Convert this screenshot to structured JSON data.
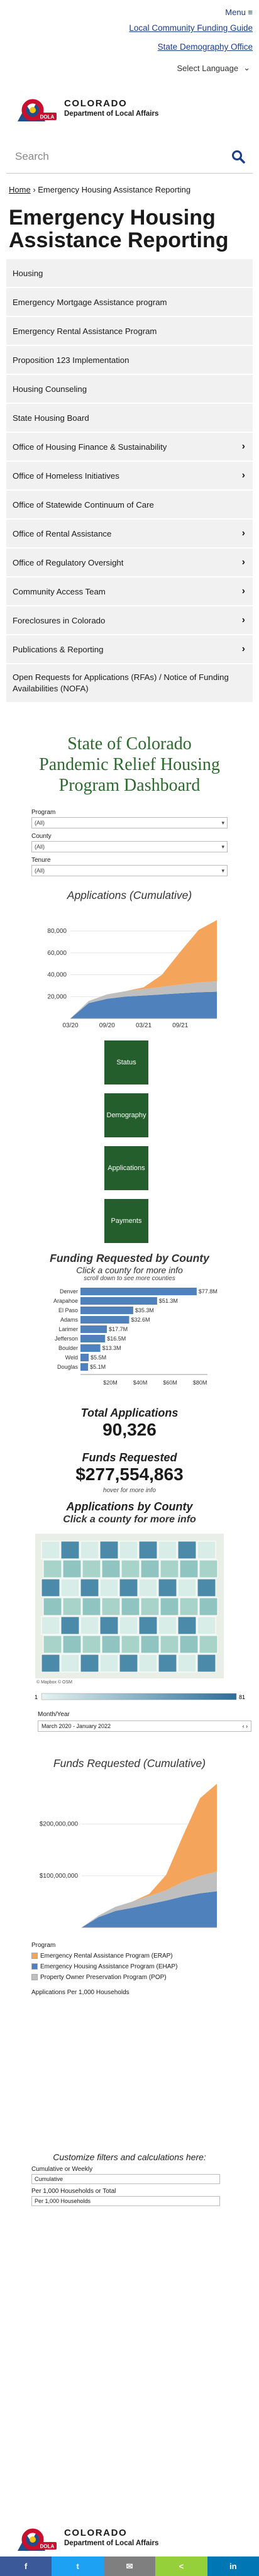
{
  "header": {
    "menu_label": "Menu ≡",
    "links": [
      "Local Community Funding Guide",
      "State Demography Office"
    ],
    "language_label": "Select Language",
    "logo_line1": "COLORADO",
    "logo_line2": "Department of Local Affairs",
    "logo_badge": "DOLA",
    "search_placeholder": "Search"
  },
  "breadcrumb": {
    "home": "Home",
    "current": "Emergency Housing Assistance Reporting"
  },
  "page_title": "Emergency Housing Assistance Reporting",
  "nav": [
    {
      "label": "Housing",
      "chevron": false
    },
    {
      "label": "Emergency Mortgage Assistance program",
      "chevron": false
    },
    {
      "label": "Emergency Rental Assistance Program",
      "chevron": false
    },
    {
      "label": "Proposition 123 Implementation",
      "chevron": false
    },
    {
      "label": "Housing Counseling",
      "chevron": false
    },
    {
      "label": "State Housing Board",
      "chevron": false
    },
    {
      "label": "Office of Housing Finance & Sustainability",
      "chevron": true
    },
    {
      "label": "Office of Homeless Initiatives",
      "chevron": true
    },
    {
      "label": "Office of Statewide Continuum of Care",
      "chevron": false
    },
    {
      "label": "Office of Rental Assistance",
      "chevron": true
    },
    {
      "label": "Office of Regulatory Oversight",
      "chevron": true
    },
    {
      "label": "Community Access Team",
      "chevron": true
    },
    {
      "label": "Foreclosures in Colorado",
      "chevron": true
    },
    {
      "label": "Publications & Reporting",
      "chevron": true
    },
    {
      "label": "Open Requests for Applications (RFAs) / Notice of Funding Availabilities (NOFA)",
      "chevron": false
    }
  ],
  "dashboard": {
    "title": "State of Colorado Pandemic Relief Housing Program Dashboard",
    "filters": [
      {
        "label": "Program",
        "value": "(All)"
      },
      {
        "label": "County",
        "value": "(All)"
      },
      {
        "label": "Tenure",
        "value": "(All)"
      }
    ],
    "tiles": [
      "Status",
      "Demography",
      "Applications",
      "Payments"
    ],
    "funding_title": "Funding Requested by County",
    "funding_sub": "Click a county for more info",
    "funding_hint": "scroll down to see more counties",
    "total_apps_label": "Total Applications",
    "total_apps": "90,326",
    "funds_label": "Funds Requested",
    "funds_value": "$277,554,863",
    "hover_hint": "hover for more info",
    "map_title": "Applications by County",
    "map_sub": "Click a county for more info",
    "map_credit": "© Mapbox © OSM",
    "color_min": "1",
    "color_max": "81",
    "month_label": "Month/Year",
    "month_value": "March 2020 - January 2022",
    "funds_cum_title": "Funds Requested (Cumulative)",
    "program_label": "Program",
    "apps_per_label": "Applications Per 1,000 Households",
    "customize_title": "Customize filters and calculations here:",
    "cum_label": "Cumulative or Weekly",
    "cum_value": "Cumulative",
    "per_label": "Per 1,000 Households or Total",
    "per_value": "Per 1,000 Households"
  },
  "chart_data": [
    {
      "type": "area",
      "title": "Applications (Cumulative)",
      "x_tick_labels": [
        "03/20",
        "09/20",
        "03/21",
        "09/21"
      ],
      "y_tick_labels": [
        "20,000",
        "40,000",
        "60,000",
        "80,000"
      ],
      "ylim": [
        0,
        95000
      ],
      "x": [
        "2020-03",
        "2020-06",
        "2020-09",
        "2020-12",
        "2021-03",
        "2021-06",
        "2021-09",
        "2021-12",
        "2022-01"
      ],
      "series": [
        {
          "name": "Emergency Housing Assistance Program (EHAP)",
          "color": "#4f81bd",
          "values": [
            0,
            14000,
            18000,
            20000,
            21000,
            22000,
            23000,
            24000,
            24500
          ]
        },
        {
          "name": "Property Owner Preservation Program (POP)",
          "color": "#bfbfbf",
          "values": [
            0,
            2000,
            4000,
            5000,
            6000,
            7000,
            8000,
            9000,
            9500
          ]
        },
        {
          "name": "Emergency Rental Assistance Program (ERAP)",
          "color": "#f5a45c",
          "values": [
            0,
            0,
            0,
            0,
            1500,
            11000,
            30000,
            48000,
            56000
          ]
        }
      ]
    },
    {
      "type": "bar",
      "title": "Funding Requested by County",
      "categories": [
        "Denver",
        "Arapahoe",
        "El Paso",
        "Adams",
        "Larimer",
        "Jefferson",
        "Boulder",
        "Weld",
        "Douglas"
      ],
      "values": [
        77.8,
        51.3,
        35.3,
        32.6,
        17.7,
        16.5,
        13.3,
        5.5,
        5.1
      ],
      "value_labels": [
        "$77.8M",
        "$51.3M",
        "$35.3M",
        "$32.6M",
        "$17.7M",
        "$16.5M",
        "$13.3M",
        "$5.5M",
        "$5.1M"
      ],
      "x_tick_labels": [
        "$20M",
        "$40M",
        "$60M",
        "$80M"
      ],
      "xlim": [
        0,
        85
      ]
    },
    {
      "type": "area",
      "title": "Funds Requested (Cumulative)",
      "y_tick_labels": [
        "$100,000,000",
        "$200,000,000"
      ],
      "ylim": [
        0,
        280000000
      ],
      "x": [
        "2020-03",
        "2020-06",
        "2020-09",
        "2020-12",
        "2021-03",
        "2021-06",
        "2021-09",
        "2021-12",
        "2022-01"
      ],
      "series": [
        {
          "name": "Emergency Housing Assistance Program (EHAP)",
          "color": "#4f81bd",
          "values": [
            0,
            20000000,
            32000000,
            38000000,
            45000000,
            52000000,
            60000000,
            66000000,
            70000000
          ]
        },
        {
          "name": "Property Owner Preservation Program (POP)",
          "color": "#bfbfbf",
          "values": [
            0,
            3000000,
            8000000,
            12000000,
            16000000,
            20000000,
            28000000,
            34000000,
            38000000
          ]
        },
        {
          "name": "Emergency Rental Assistance Program (ERAP)",
          "color": "#f5a45c",
          "values": [
            0,
            0,
            0,
            0,
            4000000,
            30000000,
            90000000,
            150000000,
            170000000
          ]
        }
      ]
    }
  ],
  "legend": [
    {
      "label": "Emergency Rental Assistance Program (ERAP)",
      "color": "#f5a45c"
    },
    {
      "label": "Emergency Housing Assistance Program (EHAP)",
      "color": "#4f81bd"
    },
    {
      "label": "Property Owner Preservation Program (POP)",
      "color": "#bfbfbf"
    }
  ],
  "share": [
    {
      "icon": "facebook-icon",
      "glyph": "f",
      "color": "#3b5998"
    },
    {
      "icon": "twitter-icon",
      "glyph": "t",
      "color": "#1da1f2"
    },
    {
      "icon": "email-icon",
      "glyph": "✉",
      "color": "#7f7f7f"
    },
    {
      "icon": "share-icon",
      "glyph": "<",
      "color": "#95d03a"
    },
    {
      "icon": "linkedin-icon",
      "glyph": "in",
      "color": "#0077b5"
    }
  ],
  "colors": {
    "link": "#1a3c8c",
    "tile": "#245e2c",
    "title_green": "#2b6b2b"
  }
}
